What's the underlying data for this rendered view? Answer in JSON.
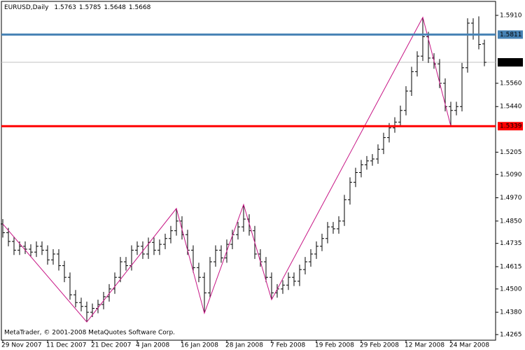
{
  "chart_data": {
    "type": "ohlc",
    "title": "EURUSD,Daily",
    "copyright": "MetaTrader, © 2001-2008 MetaQuotes Software Corp.",
    "categories": [
      "29 Nov 2007",
      null,
      null,
      null,
      null,
      null,
      null,
      null,
      "11 Dec 2007",
      null,
      null,
      null,
      null,
      null,
      null,
      null,
      "21 Dec 2007",
      null,
      null,
      null,
      null,
      null,
      null,
      null,
      "4 Jan 2008",
      null,
      null,
      null,
      null,
      null,
      null,
      null,
      "16 Jan 2008",
      null,
      null,
      null,
      null,
      null,
      null,
      null,
      "28 Jan 2008",
      null,
      null,
      null,
      null,
      null,
      null,
      null,
      "7 Feb 2008",
      null,
      null,
      null,
      null,
      null,
      null,
      null,
      "19 Feb 2008",
      null,
      null,
      null,
      null,
      null,
      null,
      null,
      "29 Feb 2008",
      null,
      null,
      null,
      null,
      null,
      null,
      null,
      "12 Mar 2008",
      null,
      null,
      null,
      null,
      null,
      null,
      null,
      "24 Mar 2008",
      null,
      null,
      null,
      null,
      null,
      null
    ],
    "open": [
      1.4835,
      1.479,
      1.4745,
      1.47,
      1.472,
      1.4705,
      1.469,
      1.472,
      1.47,
      1.465,
      1.468,
      1.462,
      1.456,
      1.447,
      1.443,
      1.441,
      1.438,
      1.44,
      1.442,
      1.446,
      1.45,
      1.456,
      1.464,
      1.462,
      1.47,
      1.472,
      1.468,
      1.474,
      1.47,
      1.473,
      1.476,
      1.48,
      1.485,
      1.478,
      1.47,
      1.461,
      1.456,
      1.448,
      1.464,
      1.47,
      1.466,
      1.473,
      1.478,
      1.482,
      1.486,
      1.48,
      1.468,
      1.464,
      1.456,
      1.448,
      1.45,
      1.452,
      1.456,
      1.454,
      1.46,
      1.464,
      1.468,
      1.472,
      1.476,
      1.482,
      1.481,
      1.485,
      1.496,
      1.505,
      1.51,
      1.514,
      1.516,
      1.517,
      1.522,
      1.528,
      1.533,
      1.536,
      1.542,
      1.552,
      1.562,
      1.57,
      1.58,
      1.569,
      1.566,
      1.556,
      1.544,
      1.542,
      1.544,
      1.564,
      1.587,
      1.581,
      1.5763
    ],
    "high": [
      1.486,
      1.4815,
      1.477,
      1.4745,
      1.4745,
      1.473,
      1.4745,
      1.4745,
      1.4725,
      1.4705,
      1.4705,
      1.4645,
      1.4585,
      1.4495,
      1.4455,
      1.4435,
      1.4425,
      1.4445,
      1.4485,
      1.4525,
      1.4585,
      1.4665,
      1.4665,
      1.4725,
      1.4745,
      1.4745,
      1.4765,
      1.4765,
      1.4755,
      1.4785,
      1.4825,
      1.4915,
      1.4875,
      1.4805,
      1.4725,
      1.4635,
      1.4585,
      1.4665,
      1.4725,
      1.4725,
      1.4755,
      1.4805,
      1.4845,
      1.4935,
      1.4885,
      1.4825,
      1.4705,
      1.4665,
      1.4585,
      1.4525,
      1.4545,
      1.4585,
      1.4585,
      1.4625,
      1.4665,
      1.4705,
      1.4745,
      1.4785,
      1.4845,
      1.4845,
      1.4875,
      1.4985,
      1.5075,
      1.5125,
      1.5165,
      1.5185,
      1.5195,
      1.5245,
      1.5305,
      1.5355,
      1.5385,
      1.5445,
      1.5545,
      1.5645,
      1.5725,
      1.59,
      1.5825,
      1.5715,
      1.5685,
      1.5585,
      1.5465,
      1.5465,
      1.5665,
      1.5895,
      1.5895,
      1.5905,
      1.5785
    ],
    "low": [
      1.4765,
      1.472,
      1.4675,
      1.4675,
      1.468,
      1.4665,
      1.4665,
      1.4675,
      1.4625,
      1.4625,
      1.4595,
      1.4535,
      1.4445,
      1.4405,
      1.4385,
      1.433,
      1.4355,
      1.4375,
      1.4395,
      1.4435,
      1.4475,
      1.4535,
      1.4595,
      1.4595,
      1.4675,
      1.4655,
      1.4655,
      1.4675,
      1.4675,
      1.4705,
      1.4735,
      1.4775,
      1.4755,
      1.4675,
      1.4585,
      1.4535,
      1.4375,
      1.4455,
      1.4615,
      1.4635,
      1.4635,
      1.4705,
      1.4755,
      1.4795,
      1.4775,
      1.4655,
      1.4615,
      1.4535,
      1.4445,
      1.4455,
      1.4475,
      1.4495,
      1.4515,
      1.4515,
      1.4575,
      1.4615,
      1.4655,
      1.4695,
      1.4735,
      1.4785,
      1.4785,
      1.4825,
      1.4935,
      1.5025,
      1.5075,
      1.5115,
      1.5135,
      1.5145,
      1.5195,
      1.5255,
      1.5305,
      1.5335,
      1.5395,
      1.5495,
      1.5595,
      1.5675,
      1.5665,
      1.5635,
      1.5535,
      1.5415,
      1.5339,
      1.5395,
      1.5415,
      1.5615,
      1.5785,
      1.5735,
      1.5648
    ],
    "close": [
      1.479,
      1.4745,
      1.47,
      1.472,
      1.4705,
      1.469,
      1.472,
      1.47,
      1.465,
      1.468,
      1.462,
      1.456,
      1.447,
      1.443,
      1.441,
      1.438,
      1.44,
      1.442,
      1.446,
      1.45,
      1.456,
      1.464,
      1.462,
      1.47,
      1.472,
      1.468,
      1.474,
      1.47,
      1.473,
      1.476,
      1.48,
      1.485,
      1.478,
      1.47,
      1.461,
      1.456,
      1.448,
      1.464,
      1.47,
      1.466,
      1.473,
      1.478,
      1.482,
      1.486,
      1.48,
      1.468,
      1.464,
      1.456,
      1.448,
      1.45,
      1.452,
      1.456,
      1.454,
      1.46,
      1.464,
      1.468,
      1.472,
      1.476,
      1.482,
      1.481,
      1.485,
      1.496,
      1.505,
      1.51,
      1.514,
      1.516,
      1.517,
      1.522,
      1.528,
      1.533,
      1.536,
      1.542,
      1.552,
      1.562,
      1.57,
      1.58,
      1.569,
      1.566,
      1.556,
      1.544,
      1.542,
      1.544,
      1.564,
      1.587,
      1.581,
      1.576,
      1.5668
    ],
    "color": "#000000",
    "price_line_color": "#c0c0c0",
    "zigzag": {
      "x": [
        0,
        15,
        31,
        36,
        43,
        48,
        75,
        80
      ],
      "values": [
        1.4835,
        1.433,
        1.4915,
        1.4375,
        1.4935,
        1.4445,
        1.59,
        1.5339
      ],
      "color": "#c71585"
    },
    "levels": [
      {
        "value": 1.5811,
        "color": "#4682b4"
      },
      {
        "value": 1.5339,
        "color": "#ff0000"
      }
    ],
    "ylim": [
      1.4236,
      1.5982
    ],
    "yticks": [
      {
        "value": 1.591,
        "label": "1.5910"
      },
      {
        "value": 1.556,
        "label": "1.5560"
      },
      {
        "value": 1.544,
        "label": "1.5440"
      },
      1.5205,
      {
        "value": 1.509,
        "label": "1.5090"
      },
      {
        "value": 1.497,
        "label": "1.4970"
      },
      {
        "value": 1.485,
        "label": "1.4850"
      },
      1.4735,
      1.4615,
      {
        "value": 1.45,
        "label": "1.4500"
      },
      {
        "value": 1.438,
        "label": "1.4380"
      },
      1.4265
    ]
  }
}
